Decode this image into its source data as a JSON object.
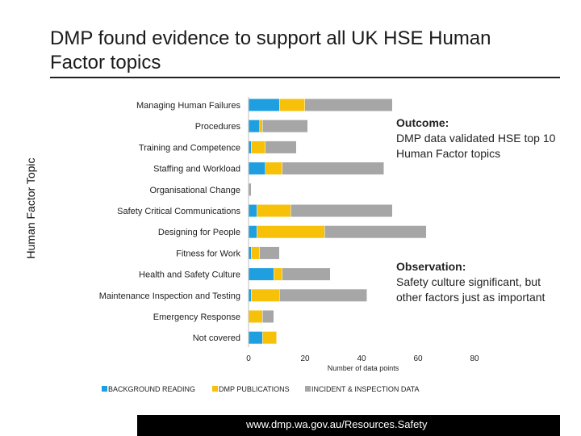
{
  "slide": {
    "title": "DMP found evidence to support all UK HSE Human Factor topics",
    "footer_url": "www.dmp.wa.gov.au/Resources.Safety"
  },
  "callouts": {
    "outcome": {
      "head": "Outcome:",
      "body": "DMP data validated HSE top 10 Human Factor topics"
    },
    "observation": {
      "head": "Observation:",
      "body": "Safety culture significant, but other factors just as important"
    }
  },
  "chart_data": {
    "type": "bar",
    "orientation": "horizontal",
    "stacked": true,
    "categories": [
      "Managing Human Failures",
      "Procedures",
      "Training and Competence",
      "Staffing and Workload",
      "Organisational Change",
      "Safety Critical Communications",
      "Designing for People",
      "Fitness for Work",
      "Health and Safety Culture",
      "Maintenance Inspection and Testing",
      "Emergency Response",
      "Not covered"
    ],
    "series": [
      {
        "name": "BACKGROUND READING",
        "color": "#1f9fe0",
        "values": [
          11,
          4,
          1,
          6,
          0,
          3,
          3,
          1,
          9,
          1,
          0,
          5
        ]
      },
      {
        "name": "DMP PUBLICATIONS",
        "color": "#f7c10a",
        "values": [
          9,
          1,
          5,
          6,
          0,
          12,
          24,
          3,
          3,
          10,
          5,
          5
        ]
      },
      {
        "name": "INCIDENT & INSPECTION DATA",
        "color": "#a6a6a6",
        "values": [
          31,
          16,
          11,
          36,
          1,
          36,
          36,
          7,
          17,
          31,
          4,
          0
        ]
      }
    ],
    "xlabel": "Number of data points",
    "ylabel": "Human Factor Topic",
    "xlim": [
      0,
      80
    ],
    "xticks": [
      0,
      20,
      40,
      60,
      80
    ],
    "legend_position": "bottom",
    "grid": false
  }
}
